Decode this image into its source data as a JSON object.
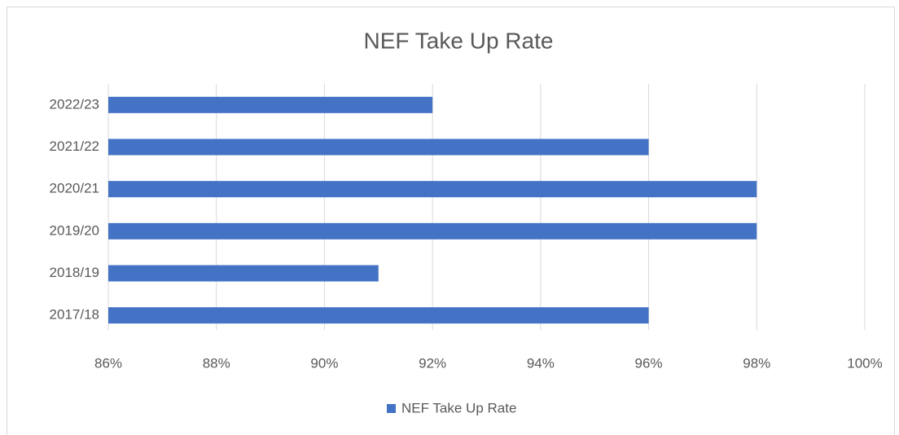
{
  "chart_data": {
    "type": "bar",
    "title": "NEF Take Up Rate",
    "categories": [
      "2022/23",
      "2021/22",
      "2020/21",
      "2019/20",
      "2018/19",
      "2017/18"
    ],
    "series": [
      {
        "name": "NEF Take Up Rate",
        "color": "#4472c4",
        "values": [
          92,
          96,
          98,
          98,
          91,
          96
        ]
      }
    ],
    "xlim": [
      86,
      100
    ],
    "xticks": [
      {
        "value": 86,
        "label": "86%"
      },
      {
        "value": 88,
        "label": "88%"
      },
      {
        "value": 90,
        "label": "90%"
      },
      {
        "value": 92,
        "label": "92%"
      },
      {
        "value": 94,
        "label": "94%"
      },
      {
        "value": 96,
        "label": "96%"
      },
      {
        "value": 98,
        "label": "98%"
      },
      {
        "value": 100,
        "label": "100%"
      }
    ],
    "grid": true,
    "legend": "bottom"
  }
}
